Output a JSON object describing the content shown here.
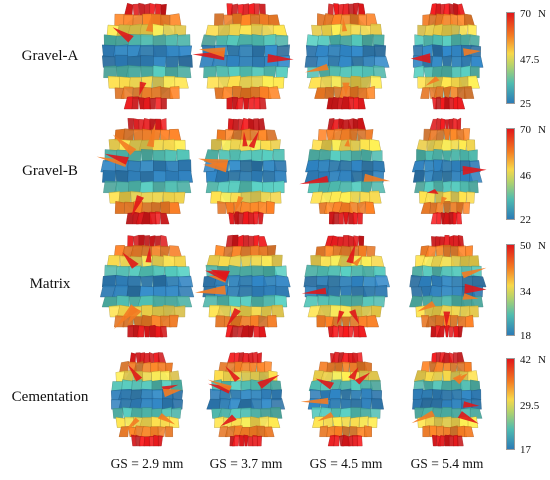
{
  "rows": [
    {
      "label": "Gravel-A",
      "scale": {
        "max": "70",
        "mid": "47.5",
        "min": "25",
        "unit": "N"
      }
    },
    {
      "label": "Gravel-B",
      "scale": {
        "max": "70",
        "mid": "46",
        "min": "22",
        "unit": "N"
      }
    },
    {
      "label": "Matrix",
      "scale": {
        "max": "50",
        "mid": "34",
        "min": "18",
        "unit": "N"
      }
    },
    {
      "label": "Cementation",
      "scale": {
        "max": "42",
        "mid": "29.5",
        "min": "17",
        "unit": "N"
      }
    }
  ],
  "columns": [
    {
      "label": "GS = 2.9 mm"
    },
    {
      "label": "GS = 3.7 mm"
    },
    {
      "label": "GS = 4.5 mm"
    },
    {
      "label": "GS = 5.4 mm"
    }
  ],
  "colors": {
    "high": "#e0171a",
    "upper": "#f37b22",
    "middle": "#f7d84a",
    "lower": "#4fbcb0",
    "low": "#2c7bb6"
  }
}
